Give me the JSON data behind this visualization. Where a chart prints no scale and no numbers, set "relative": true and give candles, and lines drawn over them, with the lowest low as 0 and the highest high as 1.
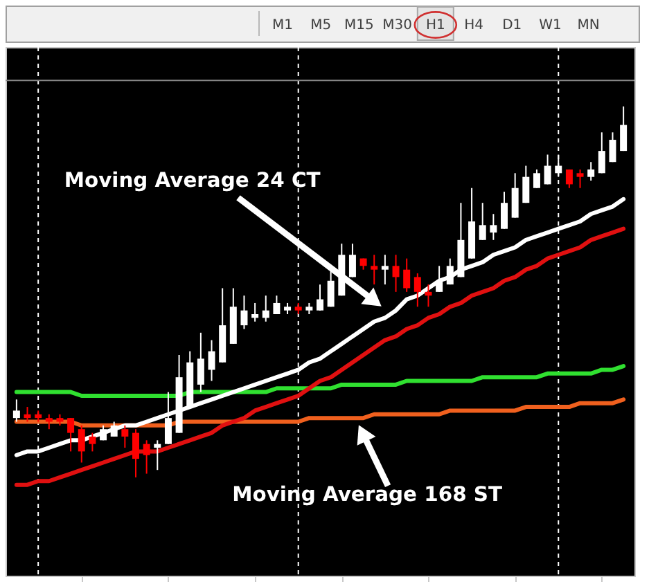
{
  "chart_data": [
    {
      "type": "other",
      "annotations": [
        "M1",
        "M5",
        "M15",
        "M30",
        "H1",
        "H4",
        "D1",
        "W1",
        "MN"
      ]
    },
    {
      "type": "candlestick",
      "relative": true,
      "grid": "x",
      "categories": [
        null,
        null,
        null,
        null,
        null,
        null,
        null,
        null,
        null,
        null,
        null,
        null,
        null,
        null,
        null,
        null,
        null,
        null,
        null,
        null,
        null,
        null,
        null,
        null,
        null,
        null,
        null,
        null,
        null,
        null,
        null,
        null,
        null,
        null,
        null,
        null,
        null,
        null,
        null,
        null,
        null,
        null,
        null,
        null,
        null,
        null,
        null,
        null,
        null,
        null,
        null,
        null,
        null,
        null,
        null,
        null,
        null
      ],
      "ohlc": [
        [
          0.16,
          0.21,
          0.15,
          0.18
        ],
        [
          0.17,
          0.19,
          0.15,
          0.16
        ],
        [
          0.17,
          0.18,
          0.15,
          0.16
        ],
        [
          0.16,
          0.17,
          0.13,
          0.15
        ],
        [
          0.16,
          0.17,
          0.14,
          0.15
        ],
        [
          0.16,
          0.16,
          0.07,
          0.12
        ],
        [
          0.13,
          0.14,
          0.04,
          0.07
        ],
        [
          0.11,
          0.12,
          0.07,
          0.09
        ],
        [
          0.1,
          0.14,
          0.1,
          0.13
        ],
        [
          0.11,
          0.15,
          0.11,
          0.14
        ],
        [
          0.13,
          0.14,
          0.08,
          0.11
        ],
        [
          0.12,
          0.13,
          0,
          0.05
        ],
        [
          0.09,
          0.1,
          0.01,
          0.06
        ],
        [
          0.08,
          0.1,
          0.02,
          0.09
        ],
        [
          0.09,
          0.23,
          0.09,
          0.16
        ],
        [
          0.12,
          0.33,
          0.12,
          0.27
        ],
        [
          0.19,
          0.34,
          0.19,
          0.31
        ],
        [
          0.25,
          0.39,
          0.23,
          0.32
        ],
        [
          0.29,
          0.37,
          0.26,
          0.34
        ],
        [
          0.31,
          0.51,
          0.31,
          0.41
        ],
        [
          0.36,
          0.51,
          0.36,
          0.46
        ],
        [
          0.41,
          0.49,
          0.4,
          0.45
        ],
        [
          0.43,
          0.47,
          0.42,
          0.44
        ],
        [
          0.43,
          0.49,
          0.42,
          0.45
        ],
        [
          0.44,
          0.49,
          0.44,
          0.47
        ],
        [
          0.45,
          0.47,
          0.44,
          0.46
        ],
        [
          0.46,
          0.47,
          0.44,
          0.45
        ],
        [
          0.45,
          0.47,
          0.44,
          0.46
        ],
        [
          0.45,
          0.52,
          0.45,
          0.48
        ],
        [
          0.46,
          0.56,
          0.46,
          0.53
        ],
        [
          0.49,
          0.63,
          0.49,
          0.6
        ],
        [
          0.54,
          0.63,
          0.54,
          0.6
        ],
        [
          0.59,
          0.59,
          0.56,
          0.57
        ],
        [
          0.57,
          0.6,
          0.52,
          0.56
        ],
        [
          0.56,
          0.6,
          0.52,
          0.57
        ],
        [
          0.57,
          0.6,
          0.5,
          0.54
        ],
        [
          0.56,
          0.59,
          0.5,
          0.51
        ],
        [
          0.54,
          0.55,
          0.46,
          0.5
        ],
        [
          0.5,
          0.52,
          0.46,
          0.49
        ],
        [
          0.5,
          0.57,
          0.5,
          0.53
        ],
        [
          0.52,
          0.59,
          0.52,
          0.57
        ],
        [
          0.54,
          0.74,
          0.54,
          0.64
        ],
        [
          0.59,
          0.78,
          0.59,
          0.69
        ],
        [
          0.64,
          0.74,
          0.64,
          0.68
        ],
        [
          0.66,
          0.71,
          0.64,
          0.68
        ],
        [
          0.67,
          0.77,
          0.67,
          0.74
        ],
        [
          0.7,
          0.82,
          0.7,
          0.78
        ],
        [
          0.74,
          0.84,
          0.74,
          0.81
        ],
        [
          0.78,
          0.83,
          0.78,
          0.82
        ],
        [
          0.79,
          0.87,
          0.79,
          0.84
        ],
        [
          0.82,
          0.87,
          0.81,
          0.84
        ],
        [
          0.83,
          0.83,
          0.78,
          0.79
        ],
        [
          0.82,
          0.83,
          0.78,
          0.81
        ],
        [
          0.81,
          0.85,
          0.8,
          0.83
        ],
        [
          0.82,
          0.93,
          0.82,
          0.88
        ],
        [
          0.85,
          0.93,
          0.85,
          0.91
        ],
        [
          0.88,
          1,
          0.88,
          0.95
        ]
      ],
      "colors": [
        "#ffffff",
        "#ff0000",
        "#ff0000",
        "#ff0000",
        "#ff0000",
        "#ff0000",
        "#ff0000",
        "#ff0000",
        "#ffffff",
        "#ffffff",
        "#ff0000",
        "#ff0000",
        "#ff0000",
        "#ffffff",
        "#ffffff",
        "#ffffff",
        "#ffffff",
        "#ffffff",
        "#ffffff",
        "#ffffff",
        "#ffffff",
        "#ffffff",
        "#ffffff",
        "#ffffff",
        "#ffffff",
        "#ffffff",
        "#ff0000",
        "#ffffff",
        "#ffffff",
        "#ffffff",
        "#ffffff",
        "#ffffff",
        "#ff0000",
        "#ff0000",
        "#ffffff",
        "#ff0000",
        "#ff0000",
        "#ff0000",
        "#ff0000",
        "#ffffff",
        "#ffffff",
        "#ffffff",
        "#ffffff",
        "#ffffff",
        "#ffffff",
        "#ffffff",
        "#ffffff",
        "#ffffff",
        "#ffffff",
        "#ffffff",
        "#ffffff",
        "#ff0000",
        "#ff0000",
        "#ffffff",
        "#ffffff",
        "#ffffff",
        "#ffffff"
      ],
      "series": [
        {
          "type": "line",
          "color": "#30e030",
          "values": [
            0.23,
            0.23,
            0.23,
            0.23,
            0.23,
            0.23,
            0.22,
            0.22,
            0.22,
            0.22,
            0.22,
            0.22,
            0.22,
            0.22,
            0.22,
            0.22,
            0.23,
            0.23,
            0.23,
            0.23,
            0.23,
            0.23,
            0.23,
            0.23,
            0.24,
            0.24,
            0.24,
            0.24,
            0.24,
            0.24,
            0.25,
            0.25,
            0.25,
            0.25,
            0.25,
            0.25,
            0.26,
            0.26,
            0.26,
            0.26,
            0.26,
            0.26,
            0.26,
            0.27,
            0.27,
            0.27,
            0.27,
            0.27,
            0.27,
            0.28,
            0.28,
            0.28,
            0.28,
            0.28,
            0.29,
            0.29,
            0.3
          ]
        },
        {
          "type": "line",
          "color": "#f0601e",
          "values": [
            0.15,
            0.15,
            0.15,
            0.15,
            0.15,
            0.15,
            0.14,
            0.14,
            0.14,
            0.14,
            0.14,
            0.14,
            0.14,
            0.14,
            0.14,
            0.15,
            0.15,
            0.15,
            0.15,
            0.15,
            0.15,
            0.15,
            0.15,
            0.15,
            0.15,
            0.15,
            0.15,
            0.16,
            0.16,
            0.16,
            0.16,
            0.16,
            0.16,
            0.17,
            0.17,
            0.17,
            0.17,
            0.17,
            0.17,
            0.17,
            0.18,
            0.18,
            0.18,
            0.18,
            0.18,
            0.18,
            0.18,
            0.19,
            0.19,
            0.19,
            0.19,
            0.19,
            0.2,
            0.2,
            0.2,
            0.2,
            0.21
          ]
        },
        {
          "type": "line",
          "color": "#e01010",
          "values": [
            -0.02,
            -0.02,
            -0.01,
            -0.01,
            0.0,
            0.01,
            0.02,
            0.03,
            0.04,
            0.05,
            0.06,
            0.07,
            0.07,
            0.07,
            0.08,
            0.09,
            0.1,
            0.11,
            0.12,
            0.14,
            0.15,
            0.16,
            0.18,
            0.19,
            0.2,
            0.21,
            0.22,
            0.24,
            0.26,
            0.27,
            0.29,
            0.31,
            0.33,
            0.35,
            0.37,
            0.38,
            0.4,
            0.41,
            0.43,
            0.44,
            0.46,
            0.47,
            0.49,
            0.5,
            0.51,
            0.53,
            0.54,
            0.56,
            0.57,
            0.59,
            0.6,
            0.61,
            0.62,
            0.64,
            0.65,
            0.66,
            0.67
          ]
        },
        {
          "type": "line",
          "color": "#ffffff",
          "values": [
            0.06,
            0.07,
            0.07,
            0.08,
            0.09,
            0.1,
            0.1,
            0.11,
            0.12,
            0.13,
            0.14,
            0.14,
            0.15,
            0.16,
            0.17,
            0.18,
            0.19,
            0.2,
            0.21,
            0.22,
            0.23,
            0.24,
            0.25,
            0.26,
            0.27,
            0.28,
            0.29,
            0.31,
            0.32,
            0.34,
            0.36,
            0.38,
            0.4,
            0.42,
            0.43,
            0.45,
            0.48,
            0.49,
            0.51,
            0.53,
            0.54,
            0.56,
            0.57,
            0.58,
            0.6,
            0.61,
            0.62,
            0.64,
            0.65,
            0.66,
            0.67,
            0.68,
            0.69,
            0.71,
            0.72,
            0.73,
            0.75
          ]
        }
      ],
      "ref_lines": [
        {
          "axis": "y",
          "value": 1.07,
          "color": "#8a8a8a"
        }
      ],
      "annotations": [
        "Moving Average 24 CT",
        "Moving Average 168 ST"
      ]
    }
  ]
}
